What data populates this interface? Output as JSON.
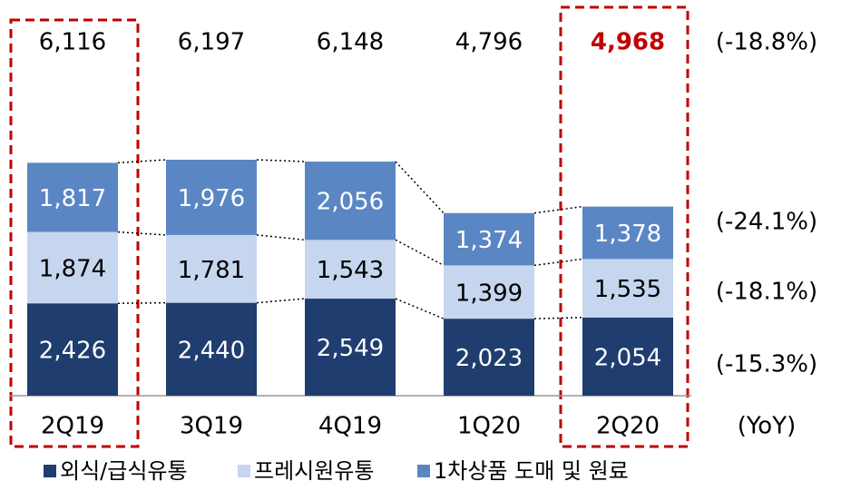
{
  "chart_data": {
    "type": "stacked_bar",
    "categories": [
      "2Q19",
      "3Q19",
      "4Q19",
      "1Q20",
      "2Q20"
    ],
    "series": [
      {
        "name": "외식/급식유통",
        "color": "#1f3d6e",
        "values": [
          2426,
          2440,
          2549,
          2023,
          2054
        ],
        "value_labels": [
          "2,426",
          "2,440",
          "2,549",
          "2,023",
          "2,054"
        ],
        "yoy": "(-15.3%)"
      },
      {
        "name": "프레시원유통",
        "color": "#c6d6ee",
        "values": [
          1874,
          1781,
          1543,
          1399,
          1535
        ],
        "value_labels": [
          "1,874",
          "1,781",
          "1,543",
          "1,399",
          "1,535"
        ],
        "yoy": "(-18.1%)"
      },
      {
        "name": "1차상품 도매 및 원료",
        "color": "#5a86c4",
        "values": [
          1817,
          1976,
          2056,
          1374,
          1378
        ],
        "value_labels": [
          "1,817",
          "1,976",
          "2,056",
          "1,374",
          "1,378"
        ],
        "yoy": "(-24.1%)"
      }
    ],
    "totals": [
      6116,
      6197,
      6148,
      4796,
      4968
    ],
    "total_labels": [
      "6,116",
      "6,197",
      "6,148",
      "4,796",
      "4,968"
    ],
    "total_yoy": "(-18.8%)",
    "yoy_label": "(YoY)",
    "highlight_color": "#c00000"
  }
}
